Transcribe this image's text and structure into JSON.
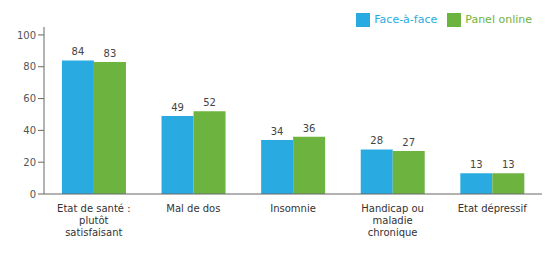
{
  "chart_data": {
    "type": "bar",
    "categories": [
      "Etat de santé :\nplutôt\nsatisfaisant",
      "Mal de dos",
      "Insomnie",
      "Handicap ou\nmaladie\nchronique",
      "Etat dépressif"
    ],
    "series": [
      {
        "name": "Face-à-face",
        "color": "#29ABE2",
        "values": [
          84,
          49,
          34,
          28,
          13
        ]
      },
      {
        "name": "Panel online",
        "color": "#6DB33F",
        "values": [
          83,
          52,
          36,
          27,
          13
        ]
      }
    ],
    "ylim": [
      0,
      105
    ],
    "yticks": [
      0,
      20,
      40,
      60,
      80,
      100
    ],
    "grid": false,
    "legend": "upper right",
    "data_labels": true
  }
}
